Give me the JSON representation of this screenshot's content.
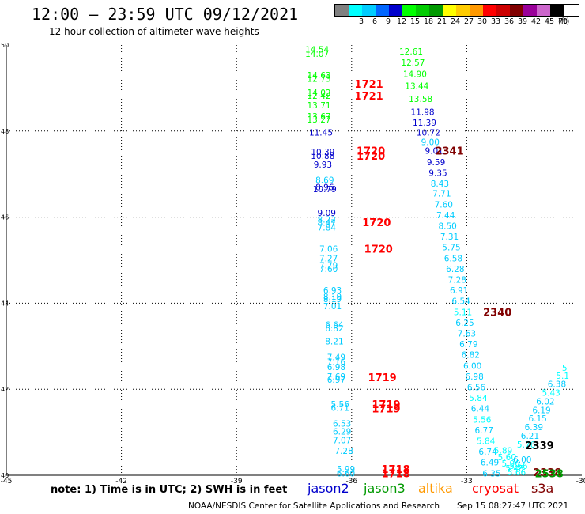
{
  "header": {
    "title": "12:00 – 23:59 UTC 09/12/2021",
    "subtitle": "12 hour collection of altimeter wave heights"
  },
  "color_scale": {
    "unit": "(ft)",
    "bins": [
      {
        "label": "",
        "color": "#808080"
      },
      {
        "label": "3",
        "color": "#00ffff"
      },
      {
        "label": "6",
        "color": "#00ccff"
      },
      {
        "label": "9",
        "color": "#0066ff"
      },
      {
        "label": "12",
        "color": "#0000cc"
      },
      {
        "label": "15",
        "color": "#00ff00"
      },
      {
        "label": "18",
        "color": "#00cc00"
      },
      {
        "label": "21",
        "color": "#009900"
      },
      {
        "label": "24",
        "color": "#ffff00"
      },
      {
        "label": "27",
        "color": "#ffcc00"
      },
      {
        "label": "30",
        "color": "#ff9900"
      },
      {
        "label": "33",
        "color": "#ff0000"
      },
      {
        "label": "36",
        "color": "#cc0000"
      },
      {
        "label": "39",
        "color": "#800000"
      },
      {
        "label": "42",
        "color": "#990099"
      },
      {
        "label": "45",
        "color": "#cc66cc"
      },
      {
        "label": "70",
        "color": "#000000"
      }
    ]
  },
  "footer": {
    "note": "note:  1) Time is in UTC;  2) SWH is in feet",
    "missions": [
      {
        "name": "jason2",
        "color": "#0000cc"
      },
      {
        "name": "jason3",
        "color": "#009900"
      },
      {
        "name": "altika",
        "color": "#ff9900"
      },
      {
        "name": "cryosat",
        "color": "#ff0000"
      },
      {
        "name": "s3a",
        "color": "#800000"
      }
    ],
    "credit": "NOAA/NESDIS Center for Satellite Applications and Research",
    "stamp": "Sep 15 08:27:47 UTC 2021"
  },
  "chart_data": {
    "type": "scatter",
    "xlim": [
      -45,
      -30
    ],
    "ylim": [
      40,
      50
    ],
    "x_ticks": [
      "-45",
      "-42",
      "-39",
      "-36",
      "-33",
      "-30"
    ],
    "y_ticks": [
      "40",
      "42",
      "44",
      "46",
      "48",
      "50"
    ],
    "x_tick_values": [
      -45,
      -42,
      -39,
      -36,
      -33,
      -30
    ],
    "y_tick_values": [
      40,
      42,
      44,
      46,
      48,
      50
    ],
    "grid": true,
    "points": [
      {
        "x": -36.9,
        "y": 49.9,
        "v": "14.54",
        "c": "#00ff00"
      },
      {
        "x": -36.9,
        "y": 49.8,
        "v": "14.07",
        "c": "#00ff00"
      },
      {
        "x": -36.85,
        "y": 49.3,
        "v": "14.63",
        "c": "#00ff00"
      },
      {
        "x": -36.85,
        "y": 49.22,
        "v": "12.73",
        "c": "#00ff00"
      },
      {
        "x": -36.85,
        "y": 48.9,
        "v": "14.02",
        "c": "#00ff00"
      },
      {
        "x": -36.85,
        "y": 48.82,
        "v": "12.42",
        "c": "#00ff00"
      },
      {
        "x": -36.85,
        "y": 48.6,
        "v": "13.71",
        "c": "#00ff00"
      },
      {
        "x": -36.85,
        "y": 48.35,
        "v": "13.67",
        "c": "#00ff00"
      },
      {
        "x": -36.85,
        "y": 48.27,
        "v": "13.27",
        "c": "#00ff00"
      },
      {
        "x": -36.8,
        "y": 47.97,
        "v": "11.45",
        "c": "#0000cc"
      },
      {
        "x": -36.75,
        "y": 47.52,
        "v": "10.39",
        "c": "#0000cc"
      },
      {
        "x": -36.75,
        "y": 47.43,
        "v": "10.88",
        "c": "#0000cc"
      },
      {
        "x": -36.75,
        "y": 47.22,
        "v": "9.93",
        "c": "#0000cc"
      },
      {
        "x": -36.7,
        "y": 46.87,
        "v": "8.69",
        "c": "#00ccff"
      },
      {
        "x": -36.7,
        "y": 46.7,
        "v": "8.96",
        "c": "#0000cc"
      },
      {
        "x": -36.7,
        "y": 46.65,
        "v": "10.79",
        "c": "#0000cc"
      },
      {
        "x": -36.65,
        "y": 46.1,
        "v": "9.09",
        "c": "#0000cc"
      },
      {
        "x": -36.65,
        "y": 45.95,
        "v": "8.22",
        "c": "#00ccff"
      },
      {
        "x": -36.65,
        "y": 45.87,
        "v": "8.47",
        "c": "#00ccff"
      },
      {
        "x": -36.65,
        "y": 45.76,
        "v": "7.84",
        "c": "#00ccff"
      },
      {
        "x": -36.6,
        "y": 45.27,
        "v": "7.06",
        "c": "#00ccff"
      },
      {
        "x": -36.6,
        "y": 45.05,
        "v": "7.27",
        "c": "#00ccff"
      },
      {
        "x": -36.6,
        "y": 44.88,
        "v": "7.79",
        "c": "#00ccff"
      },
      {
        "x": -36.6,
        "y": 44.8,
        "v": "7.60",
        "c": "#00ccff"
      },
      {
        "x": -36.5,
        "y": 44.3,
        "v": "6.93",
        "c": "#00ccff"
      },
      {
        "x": -36.5,
        "y": 44.15,
        "v": "8.19",
        "c": "#00ccff"
      },
      {
        "x": -36.5,
        "y": 44.1,
        "v": "8.19",
        "c": "#00ccff"
      },
      {
        "x": -36.5,
        "y": 43.93,
        "v": "7.01",
        "c": "#00ccff"
      },
      {
        "x": -36.45,
        "y": 43.5,
        "v": "6.64",
        "c": "#00ccff"
      },
      {
        "x": -36.45,
        "y": 43.42,
        "v": "6.82",
        "c": "#00ccff"
      },
      {
        "x": -36.45,
        "y": 43.12,
        "v": "8.21",
        "c": "#00ccff"
      },
      {
        "x": -36.4,
        "y": 42.75,
        "v": "7.49",
        "c": "#00ccff"
      },
      {
        "x": -36.4,
        "y": 42.64,
        "v": "7.16",
        "c": "#00ccff"
      },
      {
        "x": -36.4,
        "y": 42.52,
        "v": "6.98",
        "c": "#00ccff"
      },
      {
        "x": -36.4,
        "y": 42.3,
        "v": "7.69",
        "c": "#00ccff"
      },
      {
        "x": -36.4,
        "y": 42.22,
        "v": "6.97",
        "c": "#00ccff"
      },
      {
        "x": -36.3,
        "y": 41.65,
        "v": "5.56",
        "c": "#00ccff"
      },
      {
        "x": -36.3,
        "y": 41.57,
        "v": "6.71",
        "c": "#00ccff"
      },
      {
        "x": -36.25,
        "y": 41.2,
        "v": "6.53",
        "c": "#00ccff"
      },
      {
        "x": -36.25,
        "y": 41.02,
        "v": "6.29",
        "c": "#00ccff"
      },
      {
        "x": -36.25,
        "y": 40.82,
        "v": "7.07",
        "c": "#00ccff"
      },
      {
        "x": -36.2,
        "y": 40.57,
        "v": "7.28",
        "c": "#00ccff"
      },
      {
        "x": -36.15,
        "y": 40.15,
        "v": "5.99",
        "c": "#00ccff"
      },
      {
        "x": -36.15,
        "y": 40.05,
        "v": "6.60",
        "c": "#00ccff"
      },
      {
        "x": -34.45,
        "y": 49.85,
        "v": "12.61",
        "c": "#00ff00"
      },
      {
        "x": -34.4,
        "y": 49.6,
        "v": "12.57",
        "c": "#00ff00"
      },
      {
        "x": -34.35,
        "y": 49.33,
        "v": "14.90",
        "c": "#00ff00"
      },
      {
        "x": -34.3,
        "y": 49.05,
        "v": "13.44",
        "c": "#00ff00"
      },
      {
        "x": -34.2,
        "y": 48.75,
        "v": "13.58",
        "c": "#00ff00"
      },
      {
        "x": -34.15,
        "y": 48.45,
        "v": "11.98",
        "c": "#0000cc"
      },
      {
        "x": -34.1,
        "y": 48.2,
        "v": "11.39",
        "c": "#0000cc"
      },
      {
        "x": -34.0,
        "y": 47.97,
        "v": "10.72",
        "c": "#0000cc"
      },
      {
        "x": -33.95,
        "y": 47.75,
        "v": "9.00",
        "c": "#00ccff"
      },
      {
        "x": -33.85,
        "y": 47.55,
        "v": "9.01",
        "c": "#0000cc"
      },
      {
        "x": -33.8,
        "y": 47.28,
        "v": "9.59",
        "c": "#0000cc"
      },
      {
        "x": -33.75,
        "y": 47.03,
        "v": "9.35",
        "c": "#0000cc"
      },
      {
        "x": -33.7,
        "y": 46.78,
        "v": "8.43",
        "c": "#00ccff"
      },
      {
        "x": -33.65,
        "y": 46.55,
        "v": "7.71",
        "c": "#00ccff"
      },
      {
        "x": -33.6,
        "y": 46.3,
        "v": "7.60",
        "c": "#00ccff"
      },
      {
        "x": -33.55,
        "y": 46.05,
        "v": "7.44",
        "c": "#00ccff"
      },
      {
        "x": -33.5,
        "y": 45.8,
        "v": "8.50",
        "c": "#00ccff"
      },
      {
        "x": -33.45,
        "y": 45.55,
        "v": "7.31",
        "c": "#00ccff"
      },
      {
        "x": -33.4,
        "y": 45.3,
        "v": "5.75",
        "c": "#00ccff"
      },
      {
        "x": -33.35,
        "y": 45.05,
        "v": "6.58",
        "c": "#00ccff"
      },
      {
        "x": -33.3,
        "y": 44.8,
        "v": "6.28",
        "c": "#00ccff"
      },
      {
        "x": -33.25,
        "y": 44.55,
        "v": "7.28",
        "c": "#00ccff"
      },
      {
        "x": -33.2,
        "y": 44.3,
        "v": "6.91",
        "c": "#00ccff"
      },
      {
        "x": -33.15,
        "y": 44.05,
        "v": "6.54",
        "c": "#00ccff"
      },
      {
        "x": -33.1,
        "y": 43.8,
        "v": "5.11",
        "c": "#00ffff"
      },
      {
        "x": -33.05,
        "y": 43.55,
        "v": "6.25",
        "c": "#00ccff"
      },
      {
        "x": -33.0,
        "y": 43.3,
        "v": "7.63",
        "c": "#00ccff"
      },
      {
        "x": -32.95,
        "y": 43.05,
        "v": "6.79",
        "c": "#00ccff"
      },
      {
        "x": -32.9,
        "y": 42.8,
        "v": "6.82",
        "c": "#00ccff"
      },
      {
        "x": -32.85,
        "y": 42.55,
        "v": "6.00",
        "c": "#00ccff"
      },
      {
        "x": -32.8,
        "y": 42.3,
        "v": "6.98",
        "c": "#00ccff"
      },
      {
        "x": -32.75,
        "y": 42.05,
        "v": "6.56",
        "c": "#00ccff"
      },
      {
        "x": -32.7,
        "y": 41.8,
        "v": "5.84",
        "c": "#00ffff"
      },
      {
        "x": -32.65,
        "y": 41.55,
        "v": "6.44",
        "c": "#00ccff"
      },
      {
        "x": -32.6,
        "y": 41.3,
        "v": "5.56",
        "c": "#00ffff"
      },
      {
        "x": -32.55,
        "y": 41.05,
        "v": "6.77",
        "c": "#00ccff"
      },
      {
        "x": -32.5,
        "y": 40.8,
        "v": "5.84",
        "c": "#00ffff"
      },
      {
        "x": -32.45,
        "y": 40.55,
        "v": "6.74",
        "c": "#00ccff"
      },
      {
        "x": -32.4,
        "y": 40.3,
        "v": "6.49",
        "c": "#00ccff"
      },
      {
        "x": -32.35,
        "y": 40.05,
        "v": "6.35",
        "c": "#00ccff"
      },
      {
        "x": -32.05,
        "y": 40.58,
        "v": "5.89",
        "c": "#00ffff"
      },
      {
        "x": -31.95,
        "y": 40.42,
        "v": "5.60",
        "c": "#00ffff"
      },
      {
        "x": -31.85,
        "y": 40.28,
        "v": "5.96",
        "c": "#00ffff"
      },
      {
        "x": -31.75,
        "y": 40.17,
        "v": "5.48",
        "c": "#00ffff"
      },
      {
        "x": -31.7,
        "y": 40.07,
        "v": "5.66",
        "c": "#00ffff"
      },
      {
        "x": -31.65,
        "y": 40.22,
        "v": "5.66",
        "c": "#00ffff"
      },
      {
        "x": -31.55,
        "y": 40.37,
        "v": "6.00",
        "c": "#00ccff"
      },
      {
        "x": -31.45,
        "y": 40.72,
        "v": "5.76",
        "c": "#00ffff"
      },
      {
        "x": -31.35,
        "y": 40.92,
        "v": "6.21",
        "c": "#00ccff"
      },
      {
        "x": -31.25,
        "y": 41.12,
        "v": "6.39",
        "c": "#00ccff"
      },
      {
        "x": -31.15,
        "y": 41.32,
        "v": "6.15",
        "c": "#00ccff"
      },
      {
        "x": -31.05,
        "y": 41.52,
        "v": "6.19",
        "c": "#00ccff"
      },
      {
        "x": -30.95,
        "y": 41.72,
        "v": "6.02",
        "c": "#00ccff"
      },
      {
        "x": -30.8,
        "y": 41.92,
        "v": "5.43",
        "c": "#00ffff"
      },
      {
        "x": -30.65,
        "y": 42.12,
        "v": "6.38",
        "c": "#00ccff"
      },
      {
        "x": -30.5,
        "y": 42.32,
        "v": "5.1",
        "c": "#00ffff"
      },
      {
        "x": -30.45,
        "y": 42.5,
        "v": "5",
        "c": "#00ffff"
      }
    ],
    "track_labels": [
      {
        "x": -35.55,
        "y": 49.1,
        "text": "1721",
        "c": "#ff0000"
      },
      {
        "x": -35.55,
        "y": 48.82,
        "text": "1721",
        "c": "#ff0000"
      },
      {
        "x": -35.5,
        "y": 47.55,
        "text": "1720",
        "c": "#ff0000"
      },
      {
        "x": -35.5,
        "y": 47.43,
        "text": "1720",
        "c": "#ff0000"
      },
      {
        "x": -35.35,
        "y": 45.88,
        "text": "1720",
        "c": "#ff0000"
      },
      {
        "x": -35.3,
        "y": 45.27,
        "text": "1720",
        "c": "#ff0000"
      },
      {
        "x": -35.2,
        "y": 42.28,
        "text": "1719",
        "c": "#ff0000"
      },
      {
        "x": -35.1,
        "y": 41.65,
        "text": "1719",
        "c": "#ff0000"
      },
      {
        "x": -35.1,
        "y": 41.55,
        "text": "1719",
        "c": "#ff0000"
      },
      {
        "x": -34.85,
        "y": 40.15,
        "text": "1718",
        "c": "#ff0000"
      },
      {
        "x": -34.85,
        "y": 40.05,
        "text": "1718",
        "c": "#ff0000"
      },
      {
        "x": -33.45,
        "y": 47.55,
        "text": "2341",
        "c": "#800000"
      },
      {
        "x": -32.2,
        "y": 43.8,
        "text": "2340",
        "c": "#800000"
      },
      {
        "x": -31.1,
        "y": 40.7,
        "text": "2339",
        "c": "#000000"
      },
      {
        "x": -30.9,
        "y": 40.07,
        "text": "2338",
        "c": "#800000"
      },
      {
        "x": -30.85,
        "y": 40.05,
        "text": "2538",
        "c": "#009900"
      }
    ]
  }
}
